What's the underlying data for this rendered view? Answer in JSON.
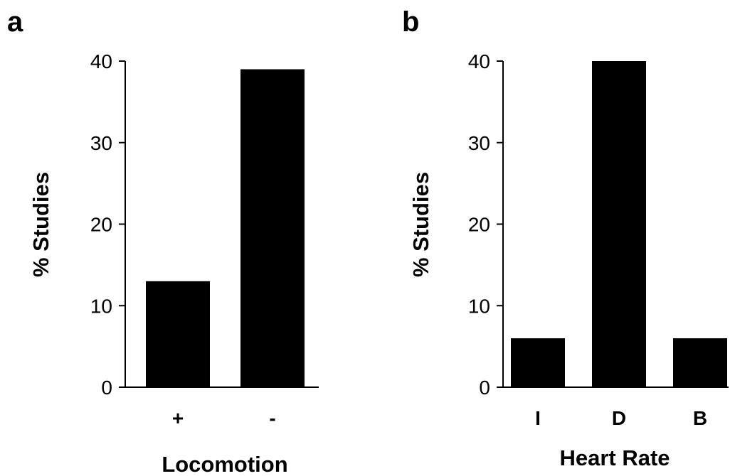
{
  "chart_data": [
    {
      "panel_label": "a",
      "type": "bar",
      "categories": [
        "+",
        "-"
      ],
      "values": [
        13,
        39
      ],
      "xlabel": "Locomotion",
      "ylabel": "% Studies",
      "ylim": [
        0,
        40
      ],
      "yticks": [
        0,
        10,
        20,
        30,
        40
      ],
      "bar_color": "#000000",
      "grid": false,
      "legend": "none"
    },
    {
      "panel_label": "b",
      "type": "bar",
      "categories": [
        "I",
        "D",
        "B"
      ],
      "values": [
        6,
        40,
        6
      ],
      "xlabel": "Heart Rate",
      "ylabel": "% Studies",
      "ylim": [
        0,
        40
      ],
      "yticks": [
        0,
        10,
        20,
        30,
        40
      ],
      "bar_color": "#000000",
      "grid": false,
      "legend": "none"
    }
  ]
}
